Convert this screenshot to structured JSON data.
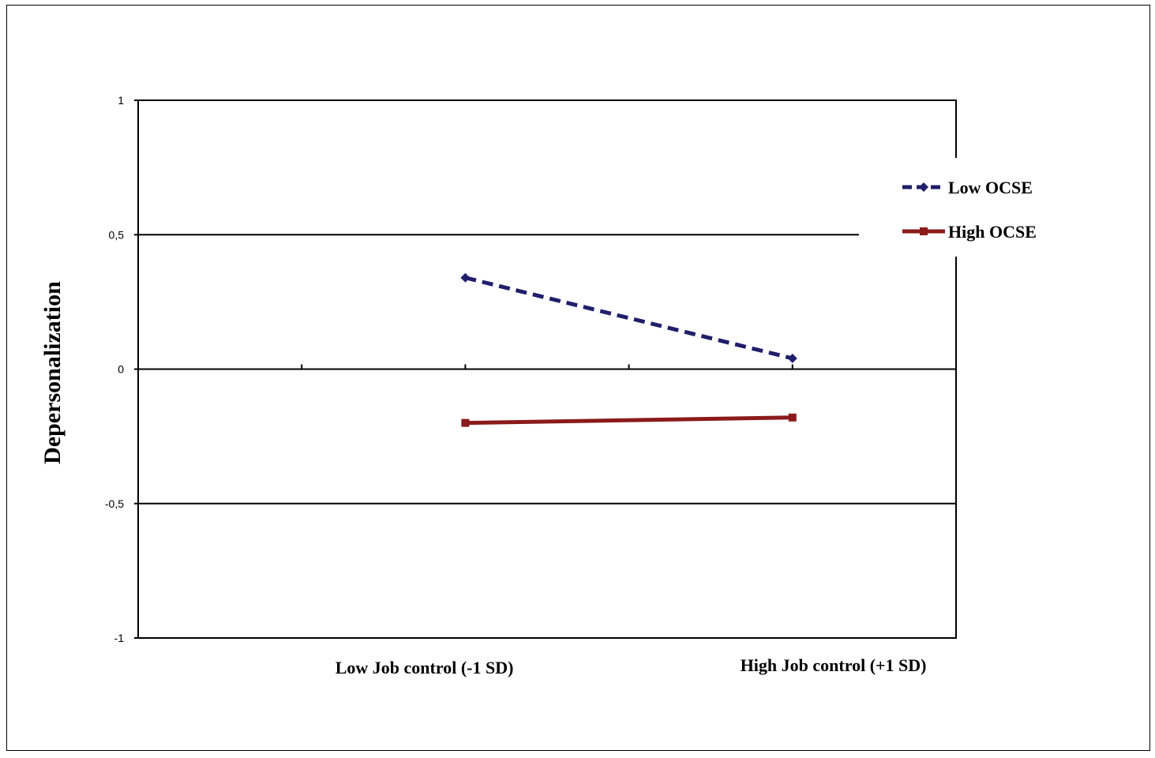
{
  "chart_data": {
    "type": "line",
    "title": "",
    "xlabel": "",
    "ylabel": "Depersonalization",
    "categories": [
      "Low Job control (-1 SD)",
      "High Job control (+1 SD)"
    ],
    "ylim": [
      -1,
      1
    ],
    "yticks": [
      {
        "value": 1,
        "label": "1"
      },
      {
        "value": 0.5,
        "label": "0,5"
      },
      {
        "value": 0,
        "label": "0"
      },
      {
        "value": -0.5,
        "label": "-0,5"
      },
      {
        "value": -1,
        "label": "-1"
      }
    ],
    "grid": true,
    "legend_position": "right",
    "series": [
      {
        "name": "Low OCSE",
        "values": [
          0.34,
          0.04
        ],
        "color": "#1f1f6b",
        "style": "dashed",
        "marker": "diamond"
      },
      {
        "name": "High OCSE",
        "values": [
          -0.2,
          -0.18
        ],
        "color": "#8b1a1a",
        "style": "solid",
        "marker": "square"
      }
    ]
  }
}
